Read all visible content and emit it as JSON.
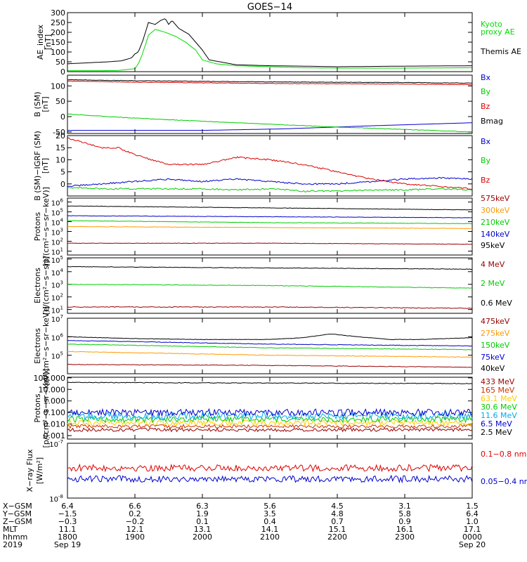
{
  "title": "GOES−14",
  "chart_data": [
    {
      "type": "line",
      "ylabel": [
        "AE_index",
        "[nT]"
      ],
      "ylim": [
        0,
        300
      ],
      "yticks": [
        "0",
        "50",
        "100",
        "150",
        "200",
        "250",
        "300"
      ],
      "series": [
        {
          "name": "Kyoto",
          "name2": "proxy AE",
          "color": "#00dd00",
          "x": [
            0,
            0.5,
            0.75,
            1.0,
            1.05,
            1.1,
            1.17,
            1.2,
            1.3,
            1.45,
            1.6,
            1.75,
            1.9,
            2.0,
            2.2,
            2.5,
            3.0,
            3.5,
            4.0,
            5.0,
            6.0
          ],
          "y": [
            5,
            5,
            6,
            15,
            40,
            80,
            150,
            185,
            215,
            200,
            180,
            150,
            110,
            60,
            40,
            30,
            25,
            20,
            18,
            18,
            20
          ]
        },
        {
          "name": "Themis AE",
          "color": "#000000",
          "x": [
            0,
            0.3,
            0.6,
            0.8,
            0.95,
            1.0,
            1.05,
            1.12,
            1.2,
            1.3,
            1.38,
            1.45,
            1.5,
            1.55,
            1.65,
            1.8,
            2.0,
            2.1,
            2.5,
            3.0,
            3.5,
            4.0,
            5.0,
            6.0
          ],
          "y": [
            40,
            45,
            50,
            55,
            70,
            90,
            100,
            160,
            250,
            240,
            260,
            270,
            240,
            260,
            220,
            190,
            110,
            60,
            35,
            30,
            28,
            25,
            28,
            30
          ]
        }
      ]
    },
    {
      "type": "line",
      "ylabel": [
        "B (SM)",
        "[nT]"
      ],
      "ylim": [
        -55,
        135
      ],
      "yticks": [
        "-50",
        "0",
        "50",
        "100"
      ],
      "series": [
        {
          "name": "Bx",
          "color": "#0000cc",
          "x": [
            0,
            2,
            3.2,
            4.5,
            6
          ],
          "y": [
            -45,
            -45,
            -40,
            -30,
            -20
          ]
        },
        {
          "name": "By",
          "color": "#00cc00",
          "x": [
            0,
            1,
            2,
            3,
            4,
            5,
            6
          ],
          "y": [
            8,
            -5,
            -15,
            -25,
            -34,
            -42,
            -50
          ]
        },
        {
          "name": "Bz",
          "color": "#dd0000",
          "x": [
            0,
            1,
            2,
            3,
            4,
            5,
            6
          ],
          "y": [
            116,
            112,
            110,
            108,
            107,
            106,
            104
          ]
        },
        {
          "name": "Bmag",
          "color": "#000000",
          "x": [
            0,
            1,
            2,
            3,
            4,
            5,
            6
          ],
          "y": [
            120,
            117,
            115,
            113,
            112,
            111,
            109
          ]
        }
      ]
    },
    {
      "type": "line",
      "ylabel": [
        "B (SM)−IGRF (SM)",
        "[nT]"
      ],
      "ylim": [
        -5,
        20
      ],
      "yticks": [
        "0",
        "5",
        "10",
        "15",
        "20"
      ],
      "series": [
        {
          "name": "Bx",
          "color": "#0000cc",
          "x": [
            0,
            0.5,
            1,
            1.5,
            2,
            2.5,
            3,
            3.5,
            4,
            4.5,
            5,
            5.5,
            6
          ],
          "y": [
            -1,
            0,
            1,
            2,
            1,
            2,
            1,
            0,
            0,
            1,
            2,
            2.5,
            2
          ]
        },
        {
          "name": "By",
          "color": "#00cc00",
          "x": [
            0,
            0.5,
            1,
            1.5,
            2,
            2.5,
            3,
            3.5,
            4,
            4.5,
            5,
            5.5,
            6
          ],
          "y": [
            -1.5,
            -2,
            -2,
            -2,
            -2,
            -2.5,
            -2,
            -3,
            -3,
            -2.5,
            -2.5,
            -2,
            -2.5
          ]
        },
        {
          "name": "Bz",
          "color": "#dd0000",
          "x": [
            0,
            0.25,
            0.5,
            0.75,
            1,
            1.25,
            1.5,
            2,
            2.5,
            3,
            3.5,
            4,
            4.5,
            5,
            5.5,
            6
          ],
          "y": [
            19,
            17,
            15,
            15,
            12,
            10,
            8,
            8,
            11,
            10,
            8,
            5,
            2,
            0,
            -1,
            -2
          ]
        }
      ]
    },
    {
      "type": "line",
      "log": true,
      "ylabel": [
        "Protons",
        "[p/(cm²−s−sr−keV)]"
      ],
      "ylim_exp": [
        0.6,
        6.4
      ],
      "yticks_exp": [
        1,
        2,
        3,
        4,
        5,
        6
      ],
      "series": [
        {
          "name": "575keV",
          "color": "#990000",
          "x": [
            0,
            3,
            6
          ],
          "y": [
            1.8,
            1.8,
            1.7
          ]
        },
        {
          "name": "300keV",
          "color": "#ff9900",
          "x": [
            0,
            3,
            6
          ],
          "y": [
            3.5,
            3.4,
            3.3
          ]
        },
        {
          "name": "210keV",
          "color": "#00cc00",
          "x": [
            0,
            3,
            6
          ],
          "y": [
            4.1,
            3.9,
            3.8
          ]
        },
        {
          "name": "140keV",
          "color": "#0000cc",
          "x": [
            0,
            3,
            6
          ],
          "y": [
            4.6,
            4.5,
            4.4
          ]
        },
        {
          "name": "95keV",
          "color": "#000000",
          "x": [
            0,
            3,
            6
          ],
          "y": [
            5.6,
            5.4,
            5.2
          ]
        }
      ]
    },
    {
      "type": "line",
      "log": true,
      "ylabel": [
        "Electrons",
        "[e/(cm²−s−sr)]"
      ],
      "ylim_exp": [
        0.7,
        5.1
      ],
      "yticks_exp": [
        1,
        2,
        3,
        4,
        5
      ],
      "series": [
        {
          "name": "4 MeV",
          "color": "#990000",
          "x": [
            0,
            3,
            6
          ],
          "y": [
            1.2,
            1.2,
            1.1
          ]
        },
        {
          "name": "2 MeV",
          "color": "#00cc00",
          "x": [
            0,
            3,
            6
          ],
          "y": [
            3.0,
            2.9,
            2.7
          ]
        },
        {
          "name": "0.6 MeV",
          "color": "#000000",
          "x": [
            0,
            3,
            6
          ],
          "y": [
            4.4,
            4.3,
            4.2
          ]
        }
      ]
    },
    {
      "type": "line",
      "log": true,
      "ylabel": [
        "Electrons",
        "[e/(cm²−s−sr−keV)]"
      ],
      "ylim_exp": [
        4,
        7
      ],
      "yticks_exp": [
        5,
        6,
        7
      ],
      "series": [
        {
          "name": "475keV",
          "color": "#990000",
          "x": [
            0,
            3,
            6
          ],
          "y": [
            4.5,
            4.45,
            4.35
          ]
        },
        {
          "name": "275keV",
          "color": "#ff9900",
          "x": [
            0,
            3,
            6
          ],
          "y": [
            5.2,
            5.0,
            4.9
          ]
        },
        {
          "name": "150keV",
          "color": "#00cc00",
          "x": [
            0,
            3,
            6
          ],
          "y": [
            5.6,
            5.4,
            5.3
          ]
        },
        {
          "name": "75keV",
          "color": "#0000cc",
          "x": [
            0,
            3,
            6
          ],
          "y": [
            5.8,
            5.6,
            5.5
          ]
        },
        {
          "name": "40keV",
          "color": "#000000",
          "x": [
            0,
            1,
            2,
            3,
            3.5,
            3.9,
            4.3,
            4.8,
            5.2,
            6
          ],
          "y": [
            6.0,
            5.9,
            5.85,
            5.85,
            5.95,
            6.15,
            6.0,
            5.85,
            5.85,
            5.95
          ]
        }
      ]
    },
    {
      "type": "line",
      "log": true,
      "ylabel": [
        "Protons",
        "[p/(cm²−s−sr−keV)]"
      ],
      "ylim_exp": [
        -3.3,
        2.05
      ],
      "yticks": [
        "0.001",
        "0.010",
        "0.100",
        "1.000",
        "10.000",
        "100.000"
      ],
      "yticks_exp": [
        -3,
        -2,
        -1,
        0,
        1,
        2
      ],
      "series": [
        {
          "name": "433 MeV",
          "color": "#990000",
          "x": [
            0,
            6
          ],
          "y": [
            -2.5,
            -2.5
          ]
        },
        {
          "name": "165 MeV",
          "color": "#cc3300",
          "x": [
            0,
            6
          ],
          "y": [
            -2.2,
            -2.2
          ]
        },
        {
          "name": "63.1 MeV",
          "color": "#ffcc00",
          "x": [
            0,
            6
          ],
          "y": [
            -1.9,
            -1.9
          ]
        },
        {
          "name": "30.6 MeV",
          "color": "#00cc00",
          "x": [
            0,
            6
          ],
          "y": [
            -1.6,
            -1.6
          ]
        },
        {
          "name": "11.6 MeV",
          "color": "#00aaee",
          "x": [
            0,
            6
          ],
          "y": [
            -1.3,
            -1.3
          ]
        },
        {
          "name": "6.5 MeV",
          "color": "#0000cc",
          "x": [
            0,
            6
          ],
          "y": [
            -1.0,
            -1.0
          ]
        },
        {
          "name": "2.5 MeV",
          "color": "#000000",
          "x": [
            0,
            6
          ],
          "y": [
            1.6,
            1.5
          ]
        }
      ]
    },
    {
      "type": "line",
      "log": true,
      "ylabel": [
        "X−ray Flux",
        "[W/m²]"
      ],
      "ylim_exp": [
        -8,
        -7
      ],
      "yticks_exp": [
        -8,
        -7
      ],
      "series": [
        {
          "name": "0.1−0.8 nm",
          "color": "#dd0000",
          "x": [
            0,
            6
          ],
          "y": [
            -7.45,
            -7.45
          ]
        },
        {
          "name": "0.05−0.4 nm",
          "color": "#0000cc",
          "x": [
            0,
            6
          ],
          "y": [
            -7.65,
            -7.65
          ]
        }
      ]
    }
  ],
  "x_axis": {
    "row_labels": [
      "X−GSM",
      "Y−GSM",
      "Z−GSM",
      "MLT",
      "hhmm",
      "2019"
    ],
    "columns": [
      [
        "6.4",
        "−1.5",
        "−0.3",
        "11.1",
        "1800",
        "Sep 19"
      ],
      [
        "6.6",
        "0.2",
        "−0.2",
        "12.1",
        "1900",
        ""
      ],
      [
        "6.3",
        "1.9",
        "0.1",
        "13.1",
        "2000",
        ""
      ],
      [
        "5.6",
        "3.5",
        "0.4",
        "14.1",
        "2100",
        ""
      ],
      [
        "4.5",
        "4.8",
        "0.7",
        "15.1",
        "2200",
        ""
      ],
      [
        "3.1",
        "5.8",
        "0.9",
        "16.1",
        "2300",
        ""
      ],
      [
        "1.5",
        "6.4",
        "1.0",
        "17.1",
        "0000",
        "Sep 20"
      ]
    ]
  }
}
